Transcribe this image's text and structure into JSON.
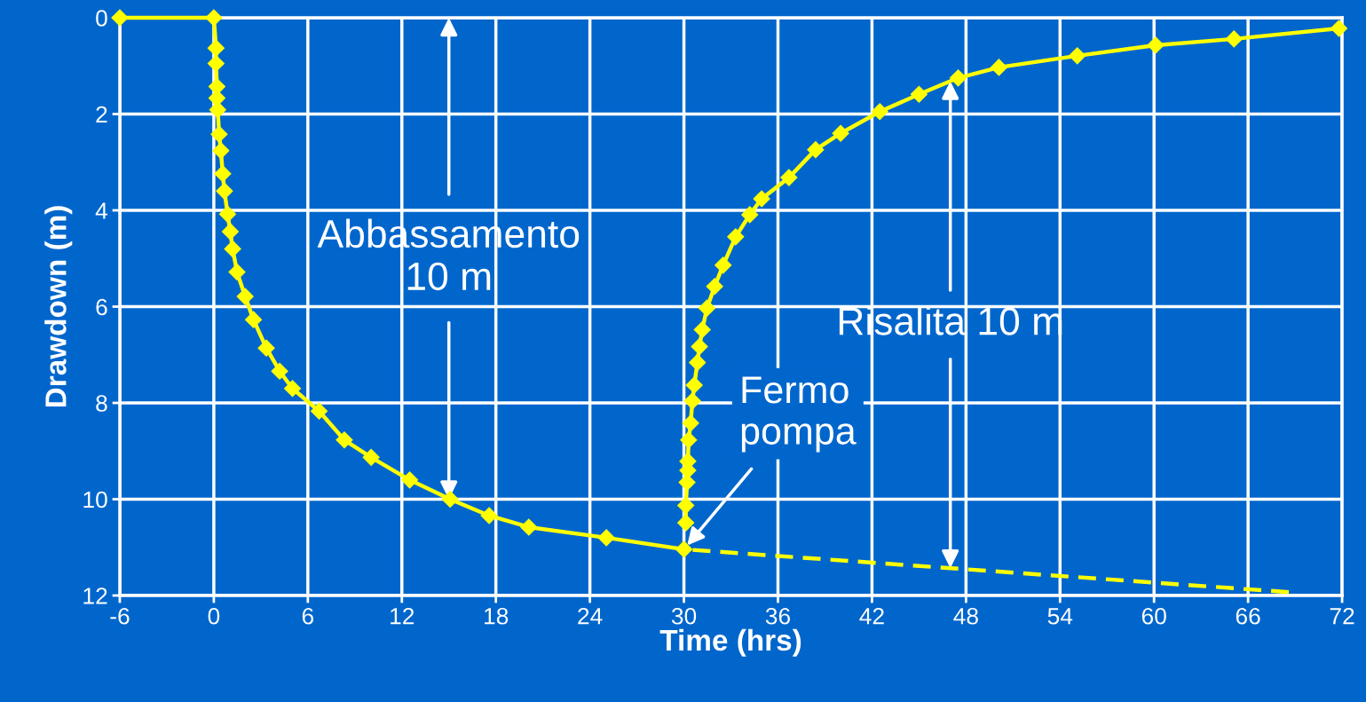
{
  "chart_data": {
    "type": "line",
    "xlabel": "Time (hrs)",
    "ylabel": "Drawdown (m)",
    "xlim": [
      -6,
      72
    ],
    "xticks": [
      -6,
      0,
      6,
      12,
      18,
      24,
      30,
      36,
      42,
      48,
      54,
      60,
      66,
      72
    ],
    "ylim": [
      12,
      0
    ],
    "yticks": [
      0,
      2,
      4,
      6,
      8,
      10,
      12
    ],
    "grid": true,
    "series": [
      {
        "color": "#ffff00",
        "marker": "diamond",
        "line_style": "solid",
        "x": [
          -6,
          0,
          0.14,
          0.14,
          0.2,
          0.2,
          0.25,
          0.34,
          0.45,
          0.57,
          0.68,
          0.88,
          1.05,
          1.2,
          1.48,
          2.0,
          2.53,
          3.35,
          4.2,
          5.02,
          6.72,
          8.33,
          10.04,
          12.5,
          15.08,
          17.57,
          20.1,
          25.05,
          30.0
        ],
        "values": [
          0,
          0,
          0.63,
          0.95,
          1.43,
          1.67,
          1.91,
          2.42,
          2.76,
          3.24,
          3.6,
          4.08,
          4.44,
          4.8,
          5.28,
          5.79,
          6.27,
          6.86,
          7.34,
          7.7,
          8.17,
          8.77,
          9.13,
          9.6,
          10.0,
          10.34,
          10.58,
          10.8,
          11.04
        ]
      },
      {
        "color": "#ffff00",
        "marker": "diamond",
        "line_style": "solid",
        "x": [
          30.12,
          30.12,
          30.2,
          30.25,
          30.25,
          30.3,
          30.43,
          30.54,
          30.66,
          30.86,
          30.99,
          31.17,
          31.47,
          31.96,
          32.5,
          33.3,
          34.2,
          34.96,
          36.7,
          38.4,
          40.0,
          42.5,
          45.0,
          47.5,
          50.1,
          55.1,
          60.1,
          65.1,
          71.8
        ],
        "values": [
          10.49,
          10.13,
          9.65,
          9.4,
          9.21,
          8.77,
          8.42,
          7.96,
          7.63,
          7.16,
          6.83,
          6.48,
          6.03,
          5.58,
          5.14,
          4.55,
          4.09,
          3.76,
          3.32,
          2.74,
          2.4,
          1.95,
          1.59,
          1.25,
          1.03,
          0.79,
          0.57,
          0.44,
          0.22
        ]
      },
      {
        "color": "#ffff00",
        "marker": "none",
        "line_style": "dashed",
        "x": [
          30.0,
          68.6
        ],
        "values": [
          11.04,
          11.93
        ]
      }
    ],
    "annotations": [
      {
        "text": "Abbassamento\n10 m",
        "x": 15,
        "y": 10
      },
      {
        "text": "Risalita 10 m",
        "x": 47,
        "y": 11.43
      },
      {
        "text": "Fermo\npompa",
        "x": 30,
        "y": 11.04
      }
    ]
  }
}
